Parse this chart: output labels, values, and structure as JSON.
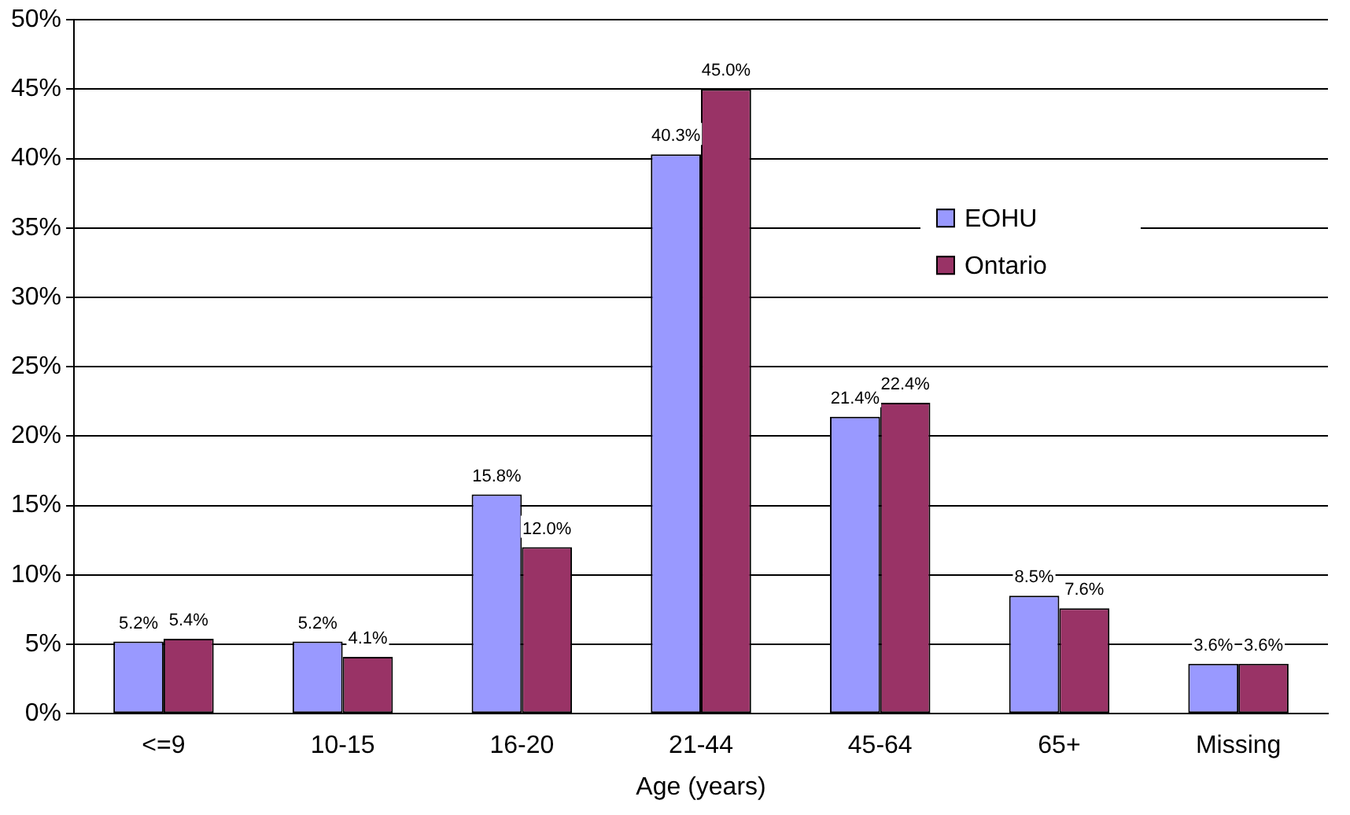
{
  "chart_data": {
    "type": "bar",
    "xlabel": "Age (years)",
    "categories": [
      "<=9",
      "10-15",
      "16-20",
      "21-44",
      "45-64",
      "65+",
      "Missing"
    ],
    "series": [
      {
        "name": "EOHU",
        "color": "#9999ff",
        "values": [
          5.2,
          5.2,
          15.8,
          40.3,
          21.4,
          8.5,
          3.6
        ],
        "value_labels": [
          "5.2%",
          "5.2%",
          "15.8%",
          "40.3%",
          "21.4%",
          "8.5%",
          "3.6%"
        ]
      },
      {
        "name": "Ontario",
        "color": "#993366",
        "values": [
          5.4,
          4.1,
          12.0,
          45.0,
          22.4,
          7.6,
          3.6
        ],
        "value_labels": [
          "5.4%",
          "4.1%",
          "12.0%",
          "45.0%",
          "22.4%",
          "7.6%",
          "3.6%"
        ]
      }
    ],
    "ylim": [
      0,
      50
    ],
    "yticks": [
      {
        "value": 0,
        "label": "0%"
      },
      {
        "value": 5,
        "label": "5%"
      },
      {
        "value": 10,
        "label": "10%"
      },
      {
        "value": 15,
        "label": "15%"
      },
      {
        "value": 20,
        "label": "20%"
      },
      {
        "value": 25,
        "label": "25%"
      },
      {
        "value": 30,
        "label": "30%"
      },
      {
        "value": 35,
        "label": "35%"
      },
      {
        "value": 40,
        "label": "40%"
      },
      {
        "value": 45,
        "label": "45%"
      },
      {
        "value": 50,
        "label": "50%"
      }
    ],
    "grid": "y",
    "legend": "top right"
  }
}
